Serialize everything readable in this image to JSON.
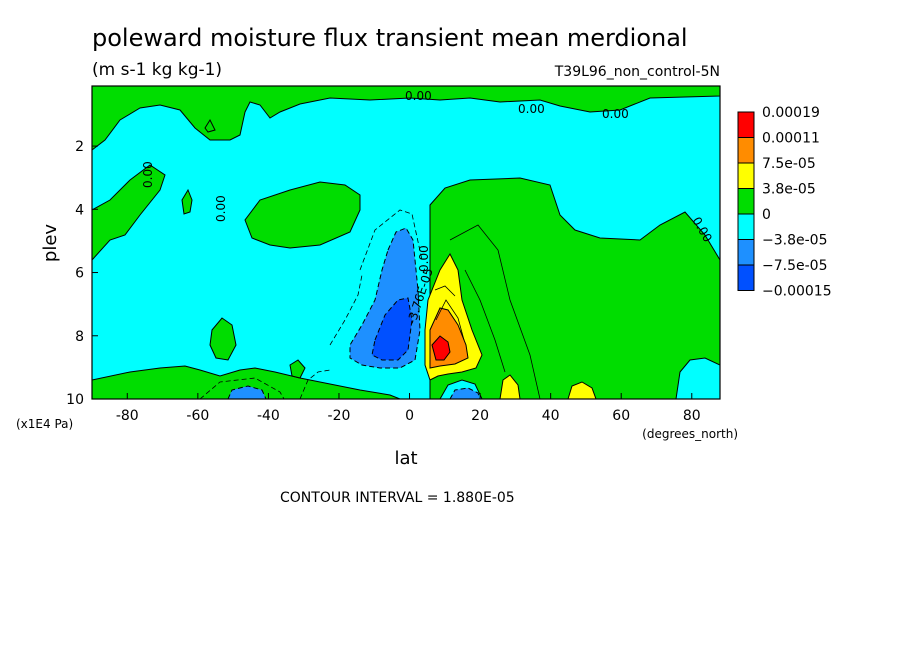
{
  "chart_data": {
    "type": "heatmap",
    "title": "poleward moisture flux transient mean merdional",
    "subtitle": "(m s-1 kg kg-1)",
    "run_label": "T39L96_non_control-5N",
    "xlabel": "lat",
    "ylabel": "plev",
    "x_unit": "(degrees_north)",
    "y_unit": "(x1E4 Pa)",
    "xlim": [
      -90,
      88
    ],
    "ylim": [
      10,
      0.1
    ],
    "x_ticks": [
      "-80",
      "-60",
      "-40",
      "-20",
      "0",
      "20",
      "40",
      "60",
      "80"
    ],
    "x_tick_values": [
      -80,
      -60,
      -40,
      -20,
      0,
      20,
      40,
      60,
      80
    ],
    "y_ticks": [
      "2",
      "4",
      "6",
      "8",
      "10"
    ],
    "y_tick_values": [
      2,
      4,
      6,
      8,
      10
    ],
    "legend": {
      "placement": "right",
      "labels": [
        "0.00019",
        "0.00011",
        "7.5e-05",
        "3.8e-05",
        "0",
        "−3.8e-05",
        "−7.5e-05",
        "−0.00015"
      ],
      "colors": [
        "#ff0000",
        "#ff8c00",
        "#ffd700",
        "#ffff00",
        "#00dd00",
        "#00ffff",
        "#1e90ff",
        "#0050ff"
      ]
    },
    "contour_labels": [
      "0.00",
      "0.00",
      "0.00",
      "0.00",
      "0.00",
      "0.00",
      "0.00",
      "-3.76E-05"
    ],
    "contour_interval_text": "CONTOUR INTERVAL = 1.880E-05",
    "features": [
      {
        "kind": "negative_max",
        "lat": -4,
        "plev": 8.2,
        "value": -0.00015
      },
      {
        "kind": "positive_max",
        "lat": 9,
        "plev": 8.4,
        "value": 0.00019
      }
    ]
  }
}
